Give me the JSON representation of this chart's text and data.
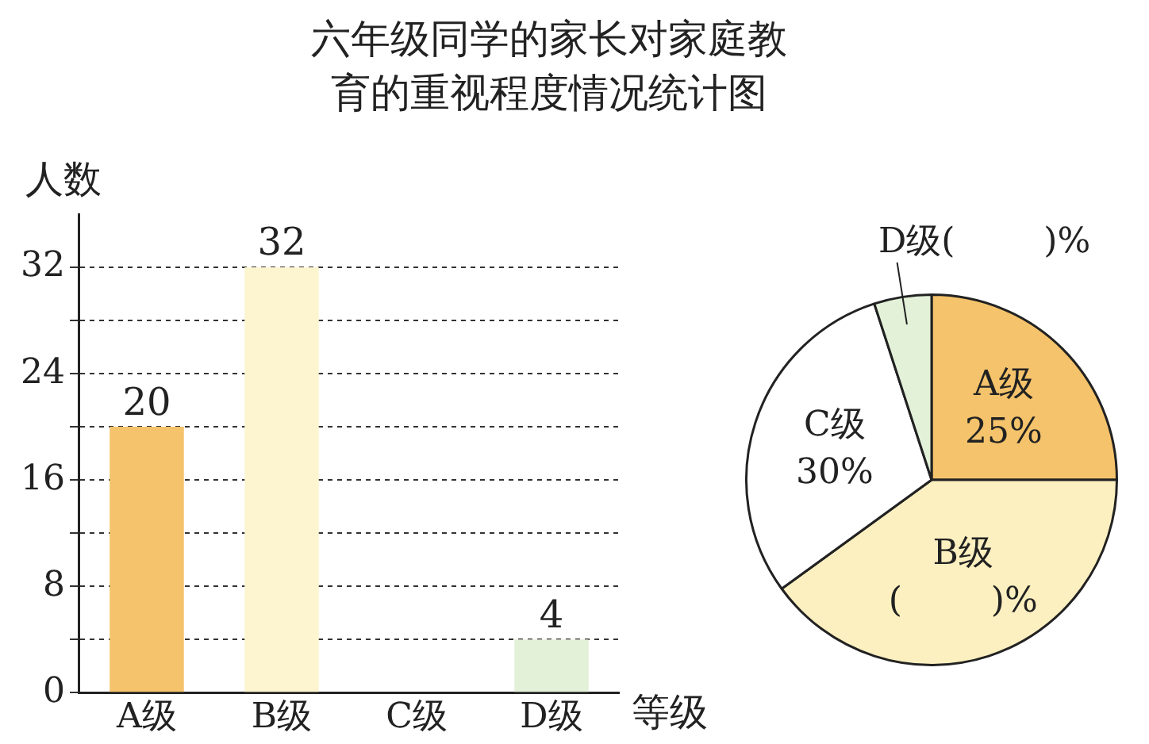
{
  "chart_data": [
    {
      "type": "bar",
      "title": "六年级同学的家长对家庭教育的重视程度情况统计图",
      "xlabel": "等级",
      "ylabel": "人数",
      "categories": [
        "A级",
        "B级",
        "C级",
        "D级"
      ],
      "values": [
        20,
        32,
        null,
        4
      ],
      "colors": [
        "#f5c36b",
        "#fdf5d0",
        "#ffffff",
        "#e3f1d9"
      ],
      "data_labels": true,
      "ylim": [
        0,
        36
      ],
      "yticks": [
        0,
        {
          "value": 4,
          "label": null
        },
        8,
        {
          "value": 12,
          "label": null
        },
        16,
        {
          "value": 20,
          "label": null
        },
        24,
        {
          "value": 28,
          "label": null
        },
        32
      ],
      "grid": "y",
      "legend": false
    },
    {
      "type": "pie",
      "categories": [
        "A级",
        "B级",
        "C级",
        "D级"
      ],
      "values": [
        25,
        40,
        30,
        5
      ],
      "colors": [
        "#f5c36b",
        "#fdf0c0",
        "#ffffff",
        "#e3f1d9"
      ],
      "value_labels": [
        "25%",
        "(        )%",
        "30%",
        "(        )%"
      ],
      "legend": false
    }
  ]
}
